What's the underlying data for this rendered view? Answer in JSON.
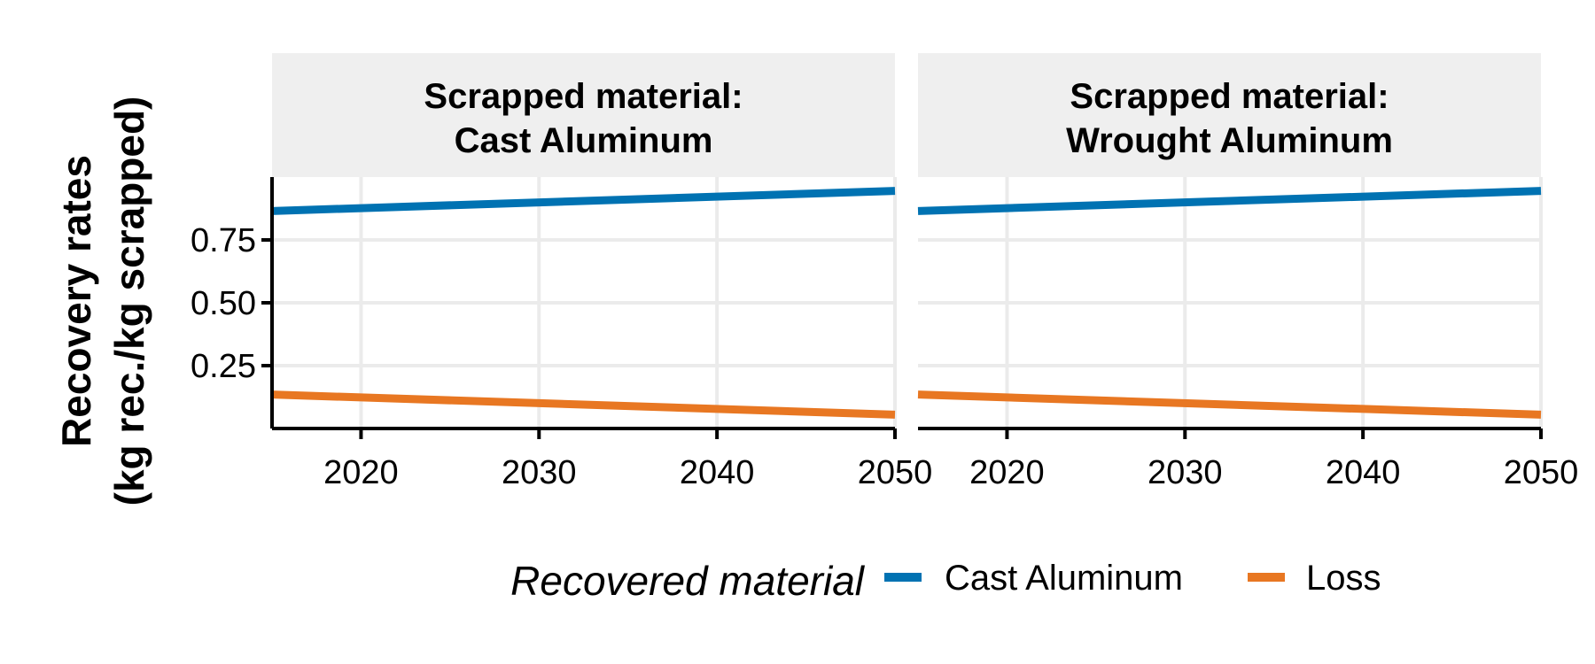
{
  "chart_data": {
    "type": "line",
    "ylabel_lines": [
      "Recovery rates",
      "(kg rec./kg scrapped)"
    ],
    "xlim": [
      2015,
      2050
    ],
    "ylim": [
      0.0,
      1.0
    ],
    "x_ticks": [
      2020,
      2030,
      2040,
      2050
    ],
    "x_tick_labels": [
      "2020",
      "2030",
      "2040",
      "2050"
    ],
    "y_ticks": [
      0.25,
      0.5,
      0.75
    ],
    "y_tick_labels": [
      "0.25",
      "0.50",
      "0.75"
    ],
    "grid": true,
    "legend": {
      "title": "Recovered material",
      "placement": "bottom",
      "entries": [
        {
          "label": "Cast Aluminum",
          "color": "#0072B2"
        },
        {
          "label": "Loss",
          "color": "#E87722"
        }
      ]
    },
    "panels": [
      {
        "strip_lines": [
          "Scrapped material:",
          "Cast Aluminum"
        ],
        "series": [
          {
            "name": "Cast Aluminum",
            "color": "#0072B2",
            "x": [
              2015,
              2050
            ],
            "y": [
              0.865,
              0.945
            ]
          },
          {
            "name": "Loss",
            "color": "#E87722",
            "x": [
              2015,
              2050
            ],
            "y": [
              0.135,
              0.055
            ]
          }
        ]
      },
      {
        "strip_lines": [
          "Scrapped material:",
          "Wrought Aluminum"
        ],
        "series": [
          {
            "name": "Cast Aluminum",
            "color": "#0072B2",
            "x": [
              2015,
              2050
            ],
            "y": [
              0.865,
              0.945
            ]
          },
          {
            "name": "Loss",
            "color": "#E87722",
            "x": [
              2015,
              2050
            ],
            "y": [
              0.135,
              0.055
            ]
          }
        ]
      }
    ]
  }
}
